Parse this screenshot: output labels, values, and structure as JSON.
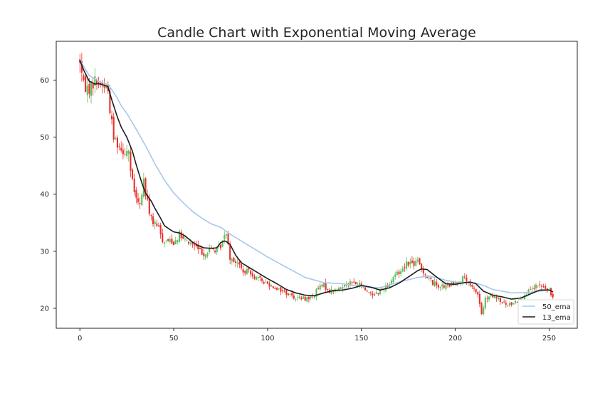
{
  "chart_data": {
    "type": "candlestick",
    "title": "Candle Chart with Exponential Moving Average",
    "xlabel": "",
    "ylabel": "",
    "xlim": [
      -12.6,
      265
    ],
    "ylim": [
      16.5,
      66.8
    ],
    "xticks": [
      0,
      50,
      100,
      150,
      200,
      250
    ],
    "yticks": [
      20,
      30,
      40,
      50,
      60
    ],
    "grid": false,
    "legend": {
      "placement": "lower-right",
      "entries": [
        "50_ema",
        "13_ema"
      ]
    },
    "colors": {
      "up": "#5cbf5c",
      "down": "#e8312a",
      "ema50": "#a7c8ea",
      "ema13": "#1e1e1e"
    },
    "close_path": {
      "x": [
        0,
        2,
        5,
        8,
        10,
        12,
        14,
        15,
        16,
        18,
        20,
        22,
        24,
        26,
        27,
        28,
        30,
        32,
        34,
        35,
        37,
        39,
        42,
        44,
        46,
        48,
        50,
        53,
        55,
        58,
        61,
        64,
        67,
        70,
        73,
        75,
        77,
        78,
        80,
        82,
        85,
        88,
        90,
        93,
        96,
        99,
        102,
        105,
        108,
        111,
        114,
        117,
        120,
        124,
        127,
        130,
        133,
        136,
        139,
        142,
        145,
        148,
        150,
        153,
        156,
        159,
        162,
        165,
        168,
        170,
        172,
        174,
        176,
        178,
        180,
        182,
        185,
        188,
        191,
        194,
        197,
        200,
        203,
        205,
        207,
        209,
        211,
        212,
        214,
        216,
        219,
        222,
        225,
        228,
        231,
        234,
        237,
        240,
        242,
        244,
        246,
        248,
        250,
        252
      ],
      "y": [
        63.5,
        59,
        58.5,
        60,
        59.5,
        59.2,
        58.8,
        58,
        55,
        50,
        49,
        48,
        47.5,
        47.8,
        44,
        42,
        39,
        38,
        42.5,
        40,
        37,
        35,
        34,
        32,
        31.8,
        32,
        31.5,
        33,
        32,
        31.5,
        31,
        30,
        29.5,
        30.5,
        30,
        31,
        32.5,
        33.5,
        29,
        28.5,
        27.5,
        26,
        26.8,
        25.5,
        25,
        24.5,
        24,
        23.5,
        23,
        22.5,
        22,
        21.8,
        21.7,
        22,
        23.5,
        24,
        23,
        23.2,
        23.5,
        24.5,
        24.5,
        24.2,
        24,
        23,
        22.5,
        22.8,
        23.5,
        24.5,
        26,
        26.2,
        27,
        28,
        28,
        27.8,
        28.2,
        27,
        25.5,
        24.5,
        24,
        23.8,
        24,
        24.5,
        25,
        25.5,
        24.2,
        23.5,
        23,
        22.5,
        19,
        21.5,
        22,
        21.8,
        21,
        20.5,
        21,
        21.5,
        22.5,
        23,
        23.5,
        24,
        23.8,
        23.5,
        23,
        22
      ]
    },
    "series": [
      {
        "name": "50_ema",
        "x": [
          0,
          5,
          10,
          14,
          15,
          17,
          20,
          22,
          25,
          28,
          31,
          35,
          40,
          45,
          50,
          55,
          60,
          65,
          70,
          75,
          80,
          85,
          90,
          95,
          100,
          110,
          120,
          130,
          140,
          150,
          160,
          170,
          175,
          180,
          185,
          190,
          195,
          200,
          205,
          210,
          215,
          220,
          230,
          240,
          245,
          250
        ],
        "values": [
          63.5,
          60.8,
          59.8,
          59.3,
          59.3,
          58.3,
          56.8,
          55.5,
          54.2,
          52.5,
          50.8,
          48.5,
          45.3,
          42.5,
          40.2,
          38.5,
          37,
          35.8,
          34.8,
          34.2,
          33,
          32,
          31,
          30,
          29,
          27.2,
          25.4,
          24.5,
          24.3,
          23.8,
          23.6,
          24.6,
          25,
          25.4,
          25.6,
          25.4,
          24.9,
          24.6,
          24.5,
          24.5,
          24,
          23.3,
          22.7,
          22.8,
          23,
          23.2
        ]
      },
      {
        "name": "13_ema",
        "x": [
          0,
          2,
          5,
          8,
          10,
          12,
          14,
          15,
          17,
          20,
          22,
          25,
          28,
          30,
          33,
          35,
          38,
          40,
          43,
          45,
          48,
          50,
          53,
          56,
          60,
          63,
          66,
          70,
          73,
          75,
          77,
          78,
          80,
          83,
          86,
          90,
          95,
          100,
          105,
          110,
          115,
          120,
          125,
          130,
          135,
          140,
          145,
          150,
          155,
          160,
          165,
          170,
          175,
          180,
          182,
          185,
          190,
          195,
          200,
          205,
          208,
          211,
          215,
          220,
          225,
          230,
          235,
          240,
          245,
          250,
          252
        ],
        "values": [
          63.5,
          61.8,
          59.8,
          59.3,
          59.4,
          59.2,
          59.0,
          58.8,
          56.5,
          53.5,
          51.8,
          50,
          47.5,
          45.2,
          42,
          40.2,
          38.8,
          37.5,
          35.8,
          34.5,
          33.8,
          33.4,
          33.2,
          32.7,
          31.6,
          31,
          30.6,
          30.5,
          30.6,
          31.5,
          31.8,
          31.7,
          31.2,
          29.3,
          28,
          27.2,
          26.2,
          25.2,
          24.3,
          23.3,
          22.7,
          22.3,
          22.2,
          22.7,
          23.1,
          23.2,
          23.5,
          24,
          23.7,
          23.2,
          23.6,
          24.4,
          25.5,
          26.6,
          26.9,
          26.8,
          25.5,
          24.3,
          24.2,
          24.5,
          24.6,
          24.3,
          23,
          22.3,
          22,
          21.6,
          21.8,
          22.5,
          23.2,
          23.2,
          22.9
        ]
      }
    ]
  }
}
